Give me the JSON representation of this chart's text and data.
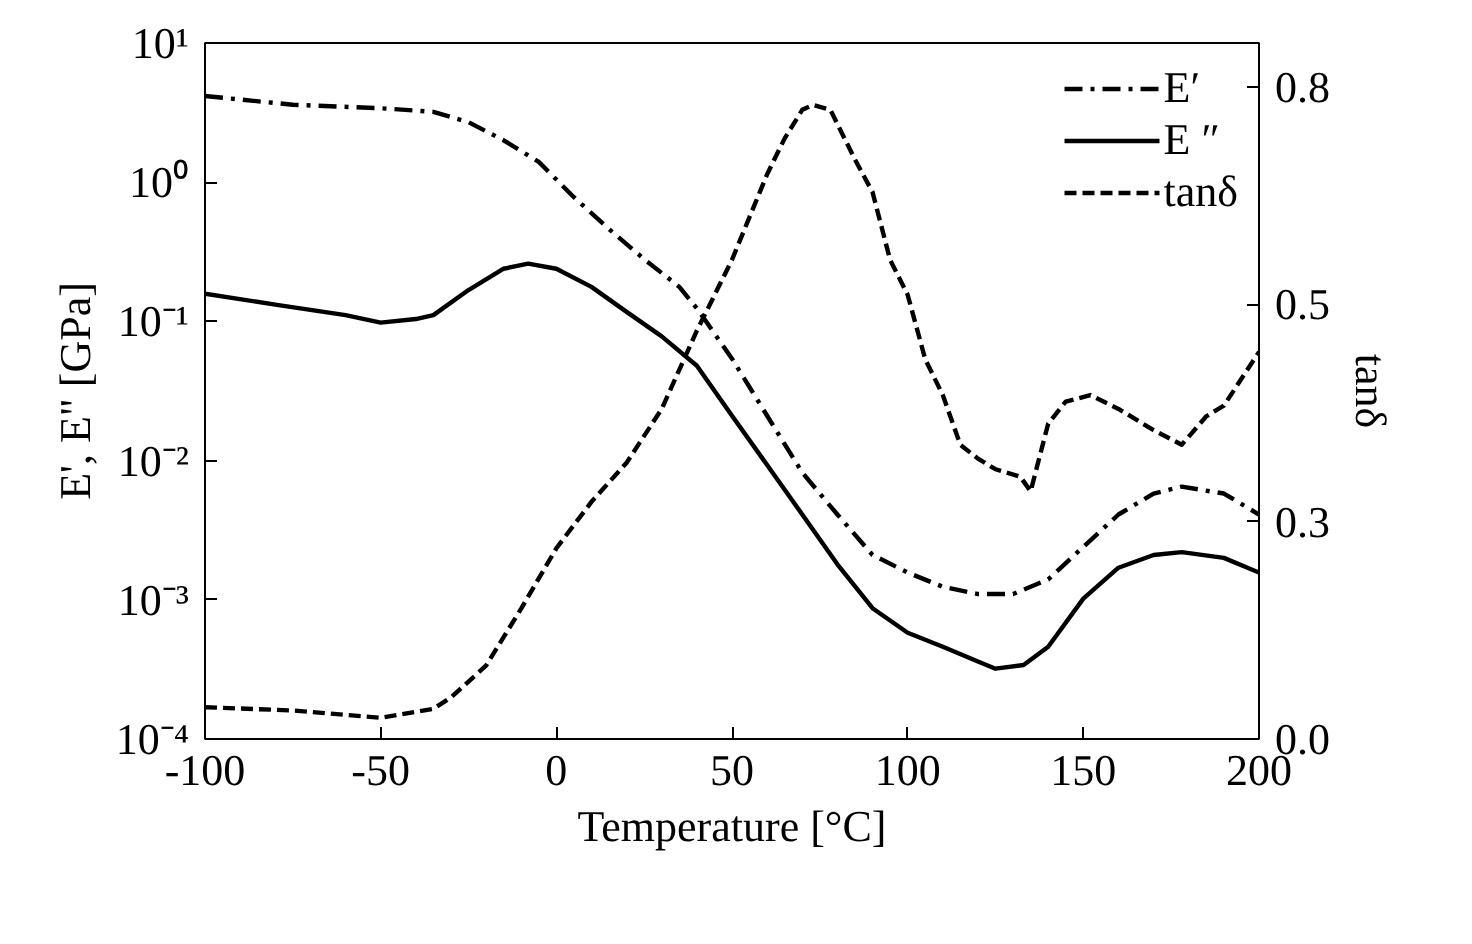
{
  "chart_data": {
    "type": "line",
    "xlabel": "Temperature [°C]",
    "ylabel": "E', E\" [GPa]",
    "y2label": "tanδ",
    "xlim": [
      -100,
      200
    ],
    "xticks": [
      -100,
      -50,
      0,
      50,
      100,
      150,
      200
    ],
    "ylim": [
      0.0001,
      10
    ],
    "yticks": [
      {
        "value": 0.0001,
        "label": "10⁻⁴"
      },
      {
        "value": 0.001,
        "label": "10⁻³"
      },
      {
        "value": 0.01,
        "label": "10⁻²"
      },
      {
        "value": 0.1,
        "label": "10⁻¹"
      },
      {
        "value": 1,
        "label": "10⁰"
      },
      {
        "value": 10,
        "label": "10¹"
      }
    ],
    "y2lim": [
      0,
      0.854
    ],
    "y2ticks": [
      {
        "value": 0,
        "label": "0.0"
      },
      {
        "value": 0.2667,
        "label": "0.3"
      },
      {
        "value": 0.5333,
        "label": "0.5"
      },
      {
        "value": 0.8,
        "label": "0.8"
      }
    ],
    "log": "y",
    "grid": false,
    "legend": "top right",
    "marker": "none",
    "series": [
      {
        "name": "E′",
        "color": "#000000",
        "line_style": "dashdot",
        "x": [
          -100,
          -75,
          -50,
          -35,
          -25,
          -15,
          -5,
          5,
          15,
          25,
          35,
          40,
          50,
          60,
          70,
          80,
          90,
          100,
          110,
          120,
          130,
          140,
          150,
          160,
          170,
          178,
          190,
          200
        ],
        "values": [
          4.16,
          3.6,
          3.4,
          3.2,
          2.7,
          2.0,
          1.4,
          0.78,
          0.46,
          0.28,
          0.177,
          0.124,
          0.054,
          0.021,
          0.0082,
          0.0041,
          0.0021,
          0.00157,
          0.00124,
          0.0011,
          0.0011,
          0.0014,
          0.0024,
          0.0041,
          0.0058,
          0.0065,
          0.0058,
          0.0041
        ]
      },
      {
        "name": "E ″",
        "color": "#000000",
        "line_style": "solid",
        "x": [
          -100,
          -80,
          -60,
          -50,
          -40,
          -35,
          -25,
          -15,
          -8,
          0,
          10,
          20,
          30,
          40,
          50,
          60,
          70,
          80,
          90,
          100,
          110,
          120,
          125,
          133,
          140,
          150,
          160,
          170,
          178,
          190,
          200
        ],
        "values": [
          0.158,
          0.132,
          0.111,
          0.098,
          0.104,
          0.111,
          0.168,
          0.239,
          0.26,
          0.239,
          0.177,
          0.117,
          0.078,
          0.048,
          0.021,
          0.0093,
          0.0041,
          0.0018,
          0.00087,
          0.00058,
          0.00046,
          0.00036,
          0.00032,
          0.00034,
          0.00046,
          0.00102,
          0.0017,
          0.0021,
          0.0022,
          0.002,
          0.00157
        ]
      },
      {
        "name": "tanδ",
        "color": "#000000",
        "line_style": "dashed",
        "axis": "y2",
        "x": [
          -100,
          -75,
          -50,
          -35,
          -30,
          -20,
          -10,
          0,
          10,
          20,
          30,
          40,
          50,
          60,
          65,
          70,
          73,
          78,
          85,
          90,
          95,
          100,
          105,
          110,
          115,
          120,
          125,
          132,
          135,
          140,
          145,
          152,
          160,
          170,
          178,
          185,
          190,
          200
        ],
        "values": [
          0.039,
          0.035,
          0.026,
          0.037,
          0.051,
          0.09,
          0.16,
          0.234,
          0.291,
          0.339,
          0.405,
          0.501,
          0.588,
          0.693,
          0.737,
          0.772,
          0.778,
          0.772,
          0.711,
          0.671,
          0.588,
          0.545,
          0.466,
          0.422,
          0.361,
          0.344,
          0.331,
          0.322,
          0.304,
          0.387,
          0.414,
          0.422,
          0.405,
          0.379,
          0.361,
          0.396,
          0.409,
          0.475
        ]
      }
    ]
  }
}
